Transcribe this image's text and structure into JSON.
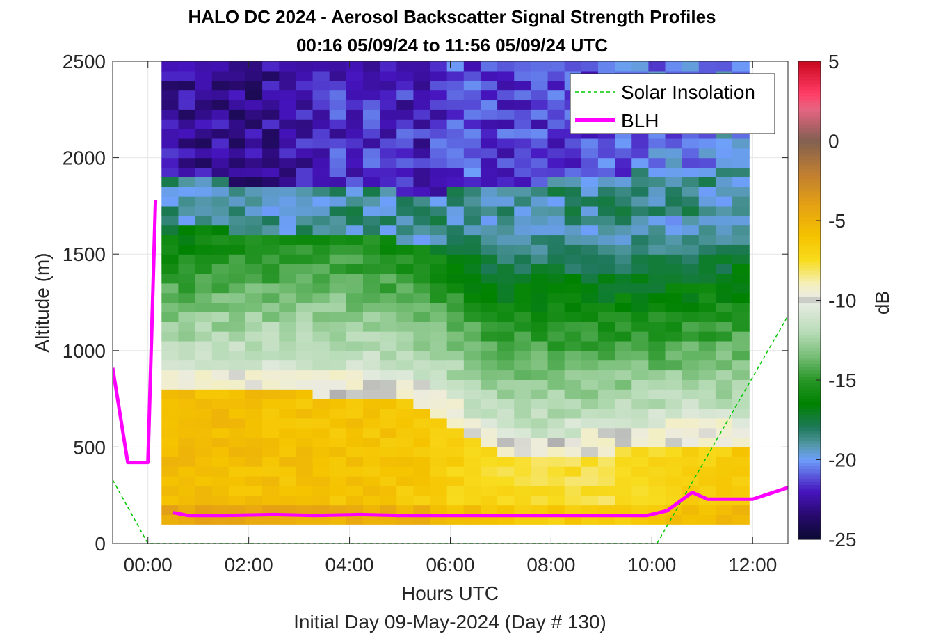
{
  "chart_data": {
    "type": "heatmap",
    "title": "HALO DC 2024 - Aerosol Backscatter Signal Strength Profiles",
    "subtitle": "00:16 05/09/24 to 11:56 05/09/24  UTC",
    "xlabel": "Hours UTC",
    "xlabel2": "Initial Day 09-May-2024 (Day # 130)",
    "ylabel": "Altitude (m)",
    "colorbar_label": "dB",
    "xlim": [
      -0.7,
      12.7
    ],
    "ylim": [
      0,
      2500
    ],
    "clim": [
      -25,
      5
    ],
    "x_ticks": [
      0,
      2,
      4,
      6,
      8,
      10,
      12
    ],
    "x_tick_labels": [
      "00:00",
      "02:00",
      "04:00",
      "06:00",
      "08:00",
      "10:00",
      "12:00"
    ],
    "y_ticks": [
      0,
      500,
      1000,
      1500,
      2000,
      2500
    ],
    "y_tick_labels": [
      "0",
      "500",
      "1000",
      "1500",
      "2000",
      "2500"
    ],
    "colorbar_ticks": [
      5,
      0,
      -5,
      -10,
      -15,
      -20,
      -25
    ],
    "colorbar_tick_labels": [
      "5",
      "0",
      "-5",
      "-10",
      "-15",
      "-20",
      "-25"
    ],
    "grid": true,
    "legend_position": "top-right",
    "legend": [
      {
        "name": "Solar Insolation",
        "color": "#00c800",
        "style": "dashed"
      },
      {
        "name": "BLH",
        "color": "#ff00ff",
        "style": "solid"
      }
    ],
    "heatmap": {
      "time_start": 0.27,
      "time_end": 11.93,
      "time_columns": 35,
      "alt_start": 100,
      "alt_end": 2500,
      "alt_bin": 50,
      "layers_description_by_time": {
        "times": [
          0.27,
          2.0,
          4.0,
          5.5,
          6.2,
          7.0,
          9.0,
          10.5,
          11.93
        ],
        "aerosol_top_m": [
          850,
          860,
          820,
          780,
          650,
          500,
          520,
          580,
          560
        ],
        "mixed_layer_top_m": [
          1650,
          1620,
          1600,
          1560,
          1580,
          1600,
          1650,
          1700,
          1750
        ],
        "aerosol_signal_db": [
          -5.5,
          -5.8,
          -6.0,
          -6.3,
          -7.0,
          -7.5,
          -7.8,
          -7.0,
          -6.5
        ],
        "mixed_layer_signal_db": [
          -13.5,
          -12.5,
          -12.0,
          -13.0,
          -14.0,
          -15.5,
          -16.0,
          -16.5,
          -16.0
        ],
        "free_troposphere_signal_db": [
          -22.5,
          -23.0,
          -21.5,
          -22.0,
          -21.0,
          -21.5,
          -21.0,
          -20.5,
          -19.5
        ]
      }
    },
    "series": [
      {
        "name": "BLH",
        "x": [
          -0.7,
          -0.4,
          0.0,
          0.15,
          0.5,
          0.8,
          1.5,
          2.5,
          3.3,
          4.2,
          5.0,
          6.0,
          7.0,
          8.0,
          9.0,
          9.9,
          10.3,
          10.8,
          11.1,
          11.6,
          12.0,
          12.7
        ],
        "y": [
          910,
          420,
          420,
          1780,
          160,
          145,
          145,
          150,
          145,
          150,
          145,
          145,
          145,
          145,
          145,
          145,
          170,
          265,
          230,
          230,
          230,
          290
        ]
      },
      {
        "name": "Solar Insolation",
        "x": [
          -0.7,
          0.0,
          10.1,
          12.7
        ],
        "y": [
          330,
          0,
          0,
          1180
        ]
      }
    ]
  }
}
